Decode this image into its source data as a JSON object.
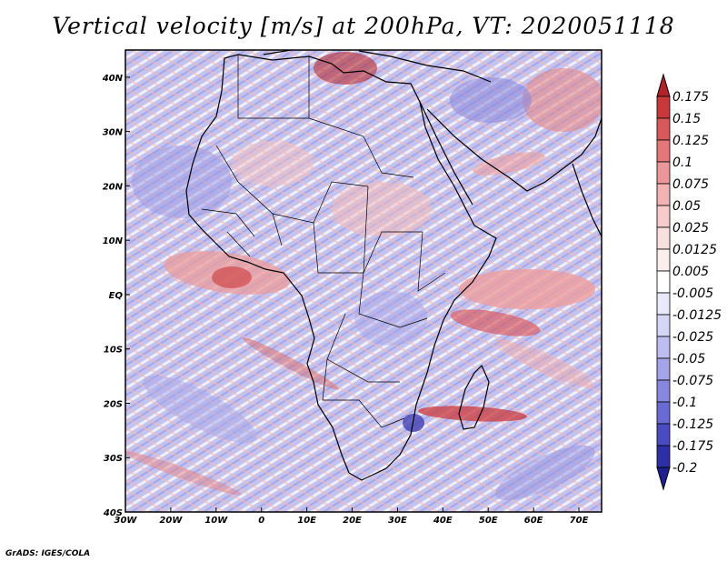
{
  "title": "Vertical velocity [m/s] at 200hPa, VT: 2020051118",
  "credit": "GrADS: IGES/COLA",
  "map": {
    "lon_range": [
      -30,
      75
    ],
    "lat_range": [
      -40,
      45
    ],
    "x_ticks": [
      {
        "value": -30,
        "label": "30W"
      },
      {
        "value": -20,
        "label": "20W"
      },
      {
        "value": -10,
        "label": "10W"
      },
      {
        "value": 0,
        "label": "0"
      },
      {
        "value": 10,
        "label": "10E"
      },
      {
        "value": 20,
        "label": "20E"
      },
      {
        "value": 30,
        "label": "30E"
      },
      {
        "value": 40,
        "label": "40E"
      },
      {
        "value": 50,
        "label": "50E"
      },
      {
        "value": 60,
        "label": "60E"
      },
      {
        "value": 70,
        "label": "70E"
      }
    ],
    "y_ticks": [
      {
        "value": 40,
        "label": "40N"
      },
      {
        "value": 30,
        "label": "30N"
      },
      {
        "value": 20,
        "label": "20N"
      },
      {
        "value": 10,
        "label": "10N"
      },
      {
        "value": 0,
        "label": "EQ"
      },
      {
        "value": -10,
        "label": "10S"
      },
      {
        "value": -20,
        "label": "20S"
      },
      {
        "value": -30,
        "label": "30S"
      },
      {
        "value": -40,
        "label": "40S"
      }
    ]
  },
  "colorbar": {
    "levels": [
      {
        "label": "0.175",
        "color": "#b0232a"
      },
      {
        "label": "0.15",
        "color": "#c9393b"
      },
      {
        "label": "0.125",
        "color": "#d9585a"
      },
      {
        "label": "0.1",
        "color": "#e4777a"
      },
      {
        "label": "0.075",
        "color": "#ec9697"
      },
      {
        "label": "0.05",
        "color": "#f2b3b2"
      },
      {
        "label": "0.025",
        "color": "#f6cbc9"
      },
      {
        "label": "0.0125",
        "color": "#f9dfdd"
      },
      {
        "label": "0.005",
        "color": "#fbeeed"
      },
      {
        "label": "-0.005",
        "color": "#ffffff"
      },
      {
        "label": "-0.0125",
        "color": "#e9e9fb"
      },
      {
        "label": "-0.025",
        "color": "#d5d5f6"
      },
      {
        "label": "-0.05",
        "color": "#bdbdf1"
      },
      {
        "label": "-0.075",
        "color": "#a4a4ea"
      },
      {
        "label": "-0.1",
        "color": "#8787e0"
      },
      {
        "label": "-0.125",
        "color": "#6a6ad4"
      },
      {
        "label": "-0.175",
        "color": "#4a4ac2"
      },
      {
        "label": "-0.2",
        "color": "#2e2ea8"
      }
    ],
    "below_color": "#1f1f90"
  }
}
